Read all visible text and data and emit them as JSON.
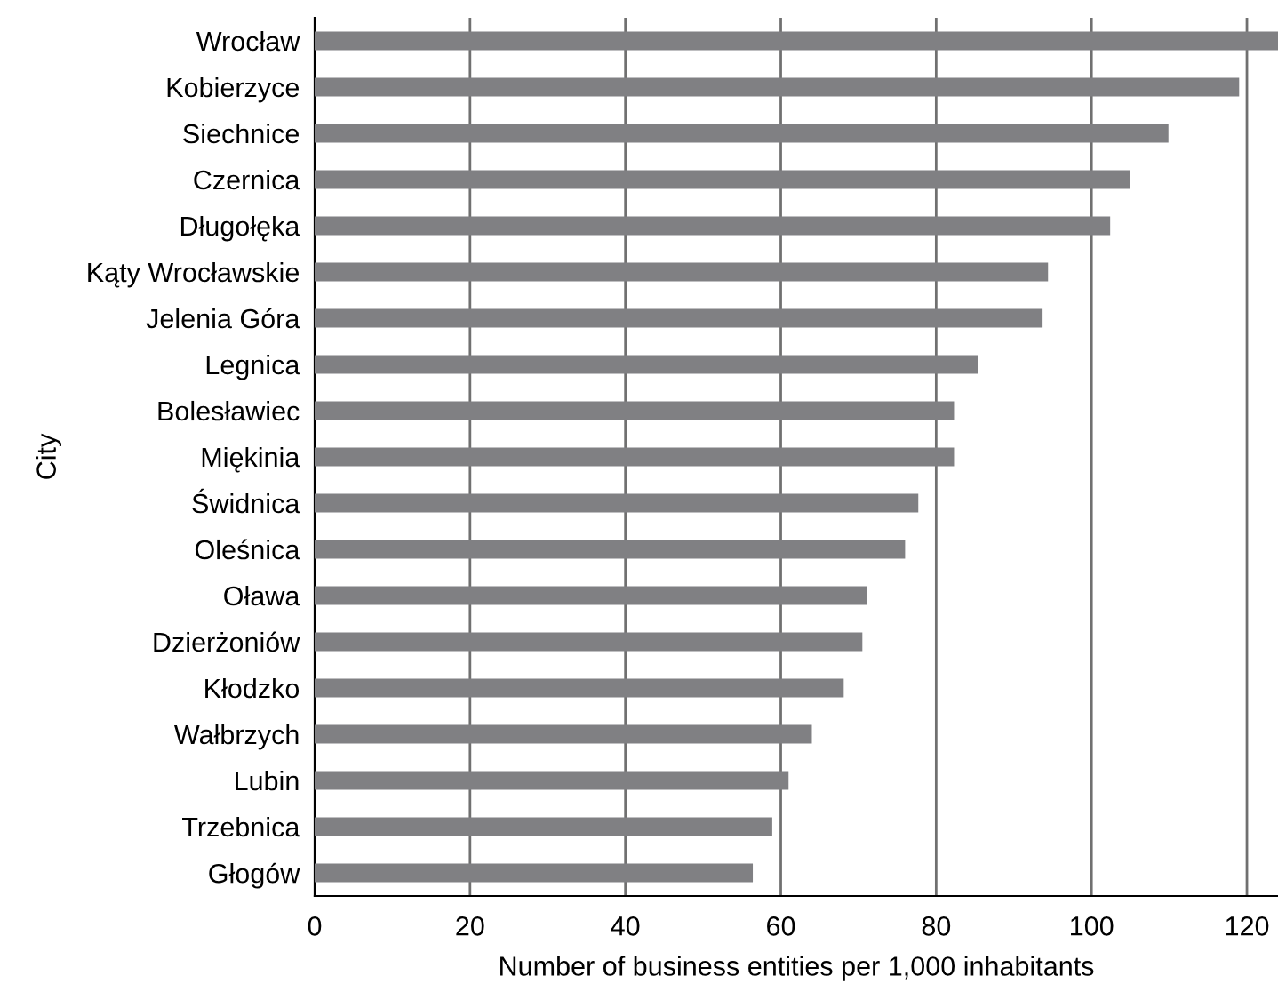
{
  "chart_data": {
    "type": "bar",
    "orientation": "horizontal",
    "xlabel": "Number of business entities per 1,000 inhabitants",
    "ylabel": "City",
    "categories": [
      "Wrocław",
      "Kobierzyce",
      "Siechnice",
      "Czernica",
      "Długołęka",
      "Kąty Wrocławskie",
      "Jelenia Góra",
      "Legnica",
      "Bolesławiec",
      "Miękinia",
      "Świdnica",
      "Oleśnica",
      "Oława",
      "Dzierżoniów",
      "Kłodzko",
      "Wałbrzych",
      "Lubin",
      "Trzebnica",
      "Głogów"
    ],
    "values": [
      124,
      119.0,
      109.9,
      104.9,
      102.4,
      94.4,
      93.7,
      85.4,
      82.3,
      82.3,
      77.7,
      76.0,
      71.1,
      70.5,
      68.1,
      64.0,
      61.0,
      58.9,
      56.4
    ],
    "color": "#808083",
    "xlim": [
      0,
      124
    ],
    "xticks": [
      0,
      20,
      40,
      60,
      80,
      100,
      120
    ],
    "grid": "x"
  }
}
